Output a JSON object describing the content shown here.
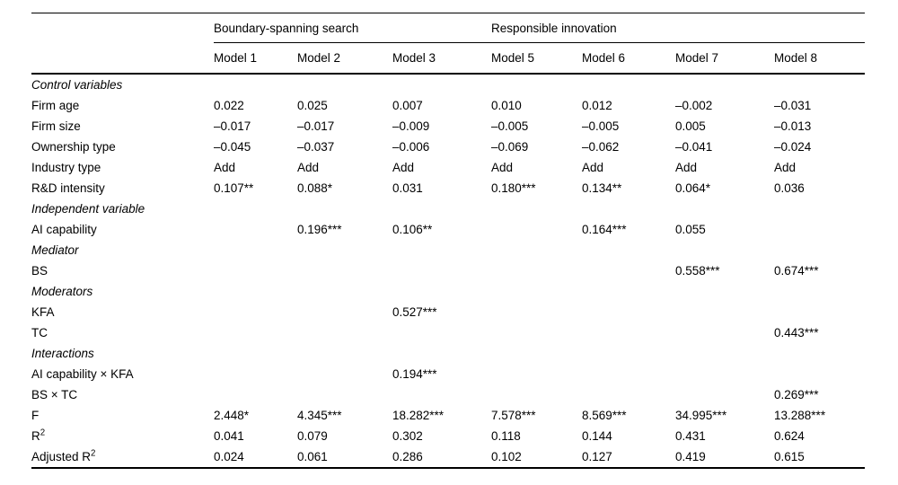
{
  "page": {
    "background_color": "#ffffff",
    "text_color": "#000000"
  },
  "table": {
    "group_headers": [
      {
        "label": "Boundary-spanning search",
        "span": 3
      },
      {
        "label": "Responsible innovation",
        "span": 4
      }
    ],
    "column_headers": [
      "Model 1",
      "Model 2",
      "Model 3",
      "Model 5",
      "Model 6",
      "Model 7",
      "Model 8"
    ],
    "rows": [
      {
        "type": "section",
        "label": "Control variables"
      },
      {
        "type": "data",
        "label": "Firm age",
        "values": [
          "0.022",
          "0.025",
          "0.007",
          "0.010",
          "0.012",
          "–0.002",
          "–0.031"
        ]
      },
      {
        "type": "data",
        "label": "Firm size",
        "values": [
          "–0.017",
          "–0.017",
          "–0.009",
          "–0.005",
          "–0.005",
          "0.005",
          "–0.013"
        ]
      },
      {
        "type": "data",
        "label": "Ownership type",
        "values": [
          "–0.045",
          "–0.037",
          "–0.006",
          "–0.069",
          "–0.062",
          "–0.041",
          "–0.024"
        ]
      },
      {
        "type": "data",
        "label": "Industry type",
        "values": [
          "Add",
          "Add",
          "Add",
          "Add",
          "Add",
          "Add",
          "Add"
        ]
      },
      {
        "type": "data",
        "label": "R&D intensity",
        "values": [
          "0.107**",
          "0.088*",
          "0.031",
          "0.180***",
          "0.134**",
          "0.064*",
          "0.036"
        ]
      },
      {
        "type": "section",
        "label": "Independent variable"
      },
      {
        "type": "data",
        "label": "AI capability",
        "values": [
          "",
          "0.196***",
          "0.106**",
          "",
          "0.164***",
          "0.055",
          ""
        ]
      },
      {
        "type": "section",
        "label": "Mediator"
      },
      {
        "type": "data",
        "label": "BS",
        "values": [
          "",
          "",
          "",
          "",
          "",
          "0.558***",
          "0.674***"
        ]
      },
      {
        "type": "section",
        "label": "Moderators"
      },
      {
        "type": "data",
        "label": "KFA",
        "values": [
          "",
          "",
          "0.527***",
          "",
          "",
          "",
          ""
        ]
      },
      {
        "type": "data",
        "label": "TC",
        "values": [
          "",
          "",
          "",
          "",
          "",
          "",
          "0.443***"
        ]
      },
      {
        "type": "section",
        "label": "Interactions"
      },
      {
        "type": "data",
        "label": "AI capability × KFA",
        "values": [
          "",
          "",
          "0.194***",
          "",
          "",
          "",
          ""
        ]
      },
      {
        "type": "data",
        "label": "BS × TC",
        "values": [
          "",
          "",
          "",
          "",
          "",
          "",
          "0.269***"
        ]
      },
      {
        "type": "data",
        "label": "F",
        "values": [
          "2.448*",
          "4.345***",
          "18.282***",
          "7.578***",
          "8.569***",
          "34.995***",
          "13.288***"
        ]
      },
      {
        "type": "data",
        "label": "R",
        "label_sup": "2",
        "values": [
          "0.041",
          "0.079",
          "0.302",
          "0.118",
          "0.144",
          "0.431",
          "0.624"
        ]
      },
      {
        "type": "data",
        "label": "Adjusted R",
        "label_sup": "2",
        "values": [
          "0.024",
          "0.061",
          "0.286",
          "0.102",
          "0.127",
          "0.419",
          "0.615"
        ]
      }
    ]
  }
}
